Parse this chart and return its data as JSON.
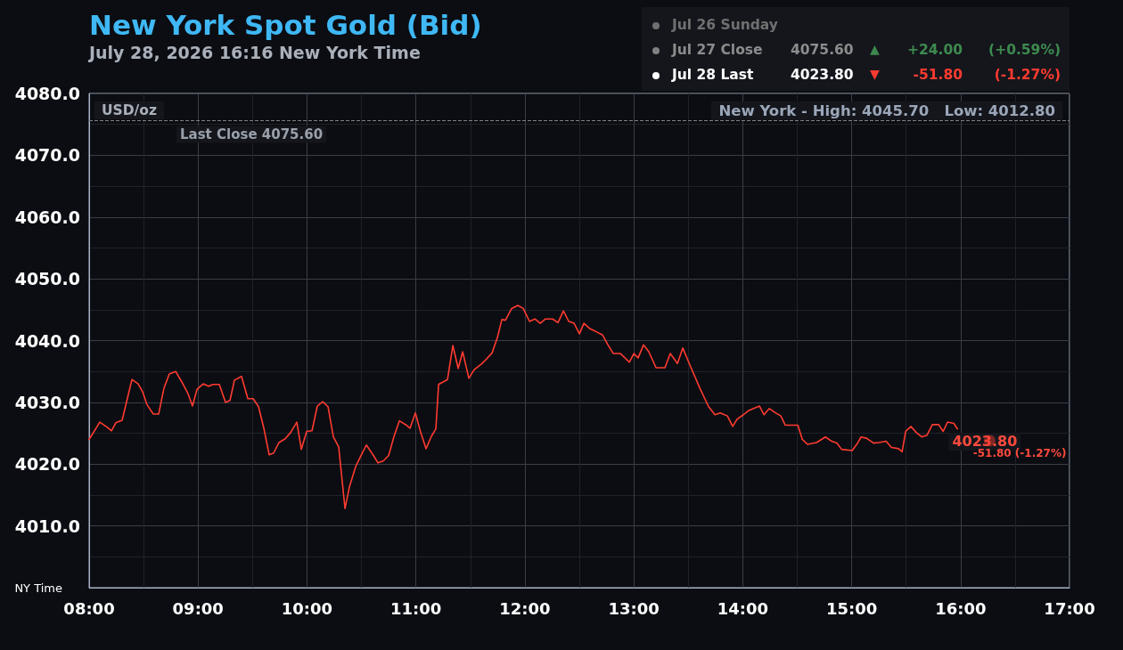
{
  "chart_data": {
    "type": "line",
    "title": "New York Spot Gold (Bid)",
    "subtitle": "July 28, 2026 16:16 New York Time",
    "xlabel": "NY Time",
    "ylabel": "USD/oz",
    "x": [
      8.0,
      8.098,
      8.164,
      8.205,
      8.245,
      8.303,
      8.352,
      8.393,
      8.45,
      8.491,
      8.532,
      8.589,
      8.638,
      8.687,
      8.736,
      8.794,
      8.851,
      8.908,
      8.949,
      8.99,
      9.047,
      9.097,
      9.137,
      9.195,
      9.252,
      9.293,
      9.334,
      9.399,
      9.457,
      9.506,
      9.555,
      9.604,
      9.653,
      9.694,
      9.743,
      9.8,
      9.849,
      9.907,
      9.948,
      9.997,
      10.046,
      10.095,
      10.144,
      10.193,
      10.242,
      10.291,
      10.349,
      10.389,
      10.447,
      10.496,
      10.545,
      10.61,
      10.651,
      10.7,
      10.75,
      10.799,
      10.848,
      10.913,
      10.946,
      10.995,
      11.044,
      11.093,
      11.142,
      11.183,
      11.208,
      11.29,
      11.339,
      11.388,
      11.429,
      11.486,
      11.535,
      11.601,
      11.642,
      11.699,
      11.748,
      11.789,
      11.822,
      11.879,
      11.936,
      11.985,
      12.043,
      12.092,
      12.141,
      12.19,
      12.255,
      12.304,
      12.354,
      12.403,
      12.452,
      12.501,
      12.542,
      12.599,
      12.648,
      12.714,
      12.763,
      12.812,
      12.878,
      12.959,
      13.0,
      13.04,
      13.089,
      13.138,
      13.204,
      13.286,
      13.335,
      13.401,
      13.45,
      13.516,
      13.606,
      13.687,
      13.745,
      13.794,
      13.859,
      13.908,
      13.949,
      14.007,
      14.056,
      14.154,
      14.195,
      14.244,
      14.301,
      14.35,
      14.391,
      14.506,
      14.547,
      14.596,
      14.678,
      14.759,
      14.817,
      14.866,
      14.907,
      15.005,
      15.054,
      15.087,
      15.136,
      15.201,
      15.25,
      15.316,
      15.365,
      15.43,
      15.463,
      15.496,
      15.545,
      15.594,
      15.643,
      15.692,
      15.741,
      15.799,
      15.84,
      15.88,
      15.938,
      15.971
    ],
    "series": [
      {
        "color": "#ff3b30",
        "values": [
          4024.0,
          4026.8,
          4026.0,
          4025.4,
          4026.7,
          4027.1,
          4030.7,
          4033.7,
          4033.0,
          4031.7,
          4029.6,
          4028.1,
          4028.1,
          4032.3,
          4034.6,
          4035.0,
          4033.3,
          4031.4,
          4029.4,
          4032.1,
          4033.0,
          4032.6,
          4032.9,
          4032.9,
          4030.0,
          4030.3,
          4033.6,
          4034.2,
          4030.6,
          4030.6,
          4029.3,
          4025.8,
          4021.5,
          4021.8,
          4023.5,
          4024.1,
          4025.1,
          4026.8,
          4022.4,
          4025.3,
          4025.4,
          4029.4,
          4030.1,
          4029.3,
          4024.4,
          4022.8,
          4012.8,
          4016.3,
          4019.6,
          4021.4,
          4023.1,
          4021.4,
          4020.2,
          4020.5,
          4021.4,
          4024.5,
          4027.0,
          4026.3,
          4025.8,
          4028.3,
          4025.1,
          4022.5,
          4024.5,
          4025.7,
          4032.9,
          4033.7,
          4039.2,
          4035.5,
          4038.2,
          4033.9,
          4035.3,
          4036.2,
          4036.9,
          4038.0,
          4040.5,
          4043.4,
          4043.3,
          4045.2,
          4045.7,
          4045.2,
          4043.1,
          4043.5,
          4042.8,
          4043.5,
          4043.5,
          4042.9,
          4044.8,
          4043.1,
          4042.8,
          4041.1,
          4042.8,
          4041.9,
          4041.5,
          4040.9,
          4039.3,
          4037.9,
          4037.9,
          4036.5,
          4037.9,
          4037.2,
          4039.3,
          4038.2,
          4035.6,
          4035.6,
          4037.9,
          4036.3,
          4038.8,
          4036.0,
          4032.3,
          4029.3,
          4028.0,
          4028.3,
          4027.8,
          4026.1,
          4027.3,
          4028.0,
          4028.7,
          4029.4,
          4028.0,
          4029.0,
          4028.3,
          4027.8,
          4026.3,
          4026.3,
          4024.0,
          4023.2,
          4023.5,
          4024.4,
          4023.7,
          4023.4,
          4022.4,
          4022.2,
          4023.4,
          4024.4,
          4024.2,
          4023.4,
          4023.5,
          4023.7,
          4022.7,
          4022.5,
          4022.0,
          4025.3,
          4026.1,
          4025.1,
          4024.4,
          4024.7,
          4026.4,
          4026.4,
          4025.3,
          4026.8,
          4026.6,
          4025.7
        ],
        "marker": "none"
      },
      {
        "type": "scatter",
        "color": "#ff3b30",
        "x": [
          16.267
        ],
        "values": [
          4023.8
        ],
        "marker": "circle"
      }
    ],
    "xlim": [
      8,
      17
    ],
    "xticks": [
      {
        "value": 8,
        "label": "08:00"
      },
      {
        "value": 9,
        "label": "09:00"
      },
      {
        "value": 10,
        "label": "10:00"
      },
      {
        "value": 11,
        "label": "11:00"
      },
      {
        "value": 12,
        "label": "12:00"
      },
      {
        "value": 13,
        "label": "13:00"
      },
      {
        "value": 14,
        "label": "14:00"
      },
      {
        "value": 15,
        "label": "15:00"
      },
      {
        "value": 16,
        "label": "16:00"
      },
      {
        "value": 17,
        "label": "17:00"
      }
    ],
    "ylim": [
      4000,
      4080
    ],
    "yticks": [
      {
        "value": 4010,
        "label": "4010.0"
      },
      {
        "value": 4020,
        "label": "4020.0"
      },
      {
        "value": 4030,
        "label": "4030.0"
      },
      {
        "value": 4040,
        "label": "4040.0"
      },
      {
        "value": 4050,
        "label": "4050.0"
      },
      {
        "value": 4060,
        "label": "4060.0"
      },
      {
        "value": 4070,
        "label": "4070.0"
      },
      {
        "value": 4080,
        "label": "4080.0"
      }
    ],
    "ref_lines": [
      {
        "axis": "y",
        "value": 4075.6,
        "label": "Last Close 4075.60",
        "color": "#808080",
        "line_style": "dashed"
      }
    ],
    "annotations": [
      "New York - High: 4045.70   Low: 4012.80",
      "Jul 26 Sunday",
      "Jul 27 Close",
      "4075.60",
      "▲",
      "+24.00",
      "(+0.59%)",
      "Jul 28 Last",
      "4023.80",
      "▼",
      "-51.80",
      "(-1.27%)",
      {
        "text": "4023.80",
        "x": 16.267,
        "y": 4023.8
      },
      "-51.80 (-1.27%)"
    ],
    "grid": true,
    "line_style": "solid"
  }
}
